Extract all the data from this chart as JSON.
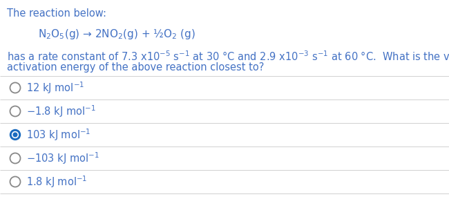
{
  "background_color": "#ffffff",
  "blue_color": "#4472c4",
  "body_color": "#4a4a4a",
  "title_line": "The reaction below:",
  "options": [
    {
      "label": "12 kJ mol⁻¹",
      "selected": false
    },
    {
      "label": "−1.8 kJ mol⁻¹",
      "selected": false
    },
    {
      "label": "103 kJ mol⁻¹",
      "selected": true
    },
    {
      "label": "−103 kJ mol⁻¹",
      "selected": false
    },
    {
      "label": "1.8 kJ mol⁻¹",
      "selected": false
    }
  ],
  "radio_color_unselected": "#888888",
  "radio_color_selected": "#1a6bbf",
  "divider_color": "#d0d0d0",
  "font_size_title": 10.5,
  "font_size_reaction": 11,
  "font_size_body": 10.5,
  "font_size_options": 10.5
}
